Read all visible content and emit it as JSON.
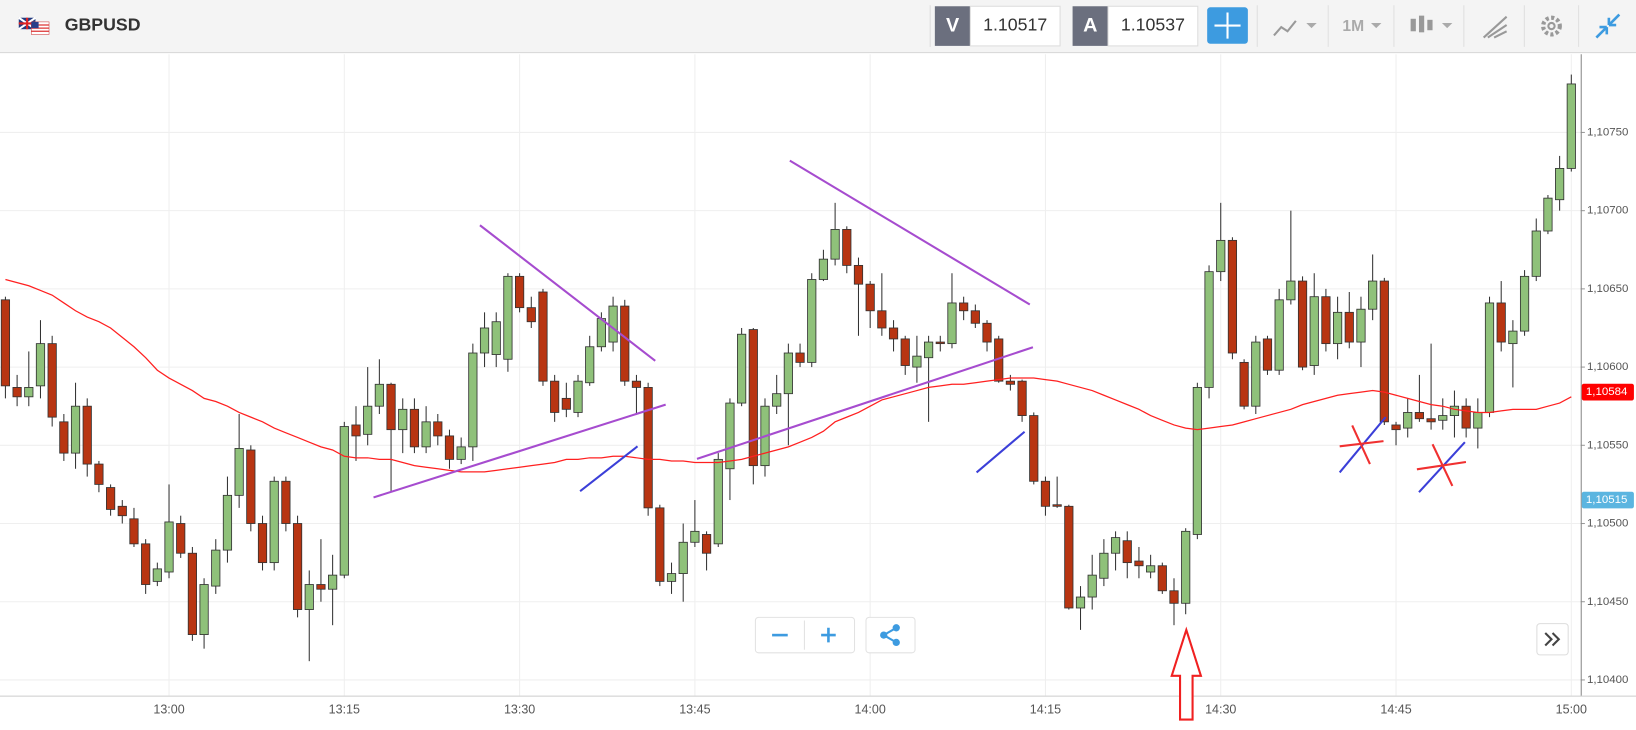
{
  "toolbar": {
    "bid_label": "V",
    "bid": 1.10517,
    "ask_label": "A",
    "ask": 1.10537,
    "timeframe": "1M"
  },
  "chart_data": {
    "type": "candlestick",
    "title": "GBPUSD",
    "categories": [
      null,
      null,
      null,
      null,
      null,
      null,
      null,
      null,
      null,
      null,
      null,
      null,
      null,
      null,
      "13:00",
      null,
      null,
      null,
      null,
      null,
      null,
      null,
      null,
      null,
      null,
      null,
      null,
      null,
      null,
      "13:15",
      null,
      null,
      null,
      null,
      null,
      null,
      null,
      null,
      null,
      null,
      null,
      null,
      null,
      null,
      "13:30",
      null,
      null,
      null,
      null,
      null,
      null,
      null,
      null,
      null,
      null,
      null,
      null,
      null,
      null,
      "13:45",
      null,
      null,
      null,
      null,
      null,
      null,
      null,
      null,
      null,
      null,
      null,
      null,
      null,
      null,
      "14:00",
      null,
      null,
      null,
      null,
      null,
      null,
      null,
      null,
      null,
      null,
      null,
      null,
      null,
      null,
      "14:15",
      null,
      null,
      null,
      null,
      null,
      null,
      null,
      null,
      null,
      null,
      null,
      null,
      null,
      null,
      "14:30",
      null,
      null,
      null,
      null,
      null,
      null,
      null,
      null,
      null,
      null,
      null,
      null,
      null,
      null,
      "14:45",
      null,
      null,
      null,
      null,
      null,
      null,
      null,
      null,
      null,
      null,
      null,
      null,
      null,
      null,
      "15:00"
    ],
    "open": [
      1.10643,
      1.10587,
      1.10581,
      1.10588,
      1.10615,
      1.10565,
      1.10545,
      1.10575,
      1.10538,
      1.10523,
      1.10511,
      1.10503,
      1.10487,
      1.10463,
      1.10469,
      1.105,
      1.10481,
      1.10429,
      1.1046,
      1.10483,
      1.10518,
      1.10547,
      1.105,
      1.10475,
      1.10527,
      1.105,
      1.10445,
      1.10461,
      1.10458,
      1.10467,
      1.10563,
      1.10557,
      1.10575,
      1.10589,
      1.1056,
      1.10573,
      1.10549,
      1.10565,
      1.10556,
      1.10541,
      1.10549,
      1.10609,
      1.10608,
      1.10605,
      1.10658,
      1.10638,
      1.10648,
      1.10591,
      1.1058,
      1.10571,
      1.1059,
      1.10613,
      1.10616,
      1.10639,
      1.10591,
      1.10587,
      1.1051,
      1.10463,
      1.10468,
      1.10488,
      1.10493,
      1.10487,
      1.10535,
      1.10577,
      1.10624,
      1.10537,
      1.10575,
      1.10583,
      1.10609,
      1.10603,
      1.10656,
      1.10669,
      1.10688,
      1.10665,
      1.10653,
      1.10636,
      1.10625,
      1.10618,
      1.106,
      1.10606,
      1.10616,
      1.10615,
      1.10641,
      1.10636,
      1.10628,
      1.10618,
      1.10591,
      1.10591,
      1.10569,
      1.10527,
      1.10512,
      1.10511,
      1.10446,
      1.10453,
      1.10465,
      1.10481,
      1.10489,
      1.10476,
      1.10469,
      1.10473,
      1.10457,
      1.10449,
      1.10493,
      1.10587,
      1.10661,
      1.10681,
      1.10603,
      1.10575,
      1.10618,
      1.10598,
      1.10643,
      1.10655,
      1.10601,
      1.10645,
      1.10615,
      1.10635,
      1.10616,
      1.10637,
      1.10655,
      1.10563,
      1.10561,
      1.10571,
      1.10567,
      1.10566,
      1.10569,
      1.10575,
      1.10561,
      1.10571,
      1.10641,
      1.10615,
      1.10623,
      1.10658,
      1.10687,
      1.10707,
      1.10727
    ],
    "high": [
      1.10645,
      1.10595,
      1.1061,
      1.1063,
      1.1062,
      1.1057,
      1.1059,
      1.1058,
      1.1054,
      1.10525,
      1.10515,
      1.1051,
      1.1049,
      1.10475,
      1.10525,
      1.10505,
      1.10485,
      1.10465,
      1.1049,
      1.1053,
      1.1057,
      1.1055,
      1.10505,
      1.1053,
      1.1053,
      1.10505,
      1.1047,
      1.1049,
      1.1048,
      1.10565,
      1.10575,
      1.106,
      1.10605,
      1.1059,
      1.1058,
      1.1058,
      1.10575,
      1.1057,
      1.1056,
      1.10555,
      1.10615,
      1.10635,
      1.10635,
      1.1066,
      1.1066,
      1.10645,
      1.1065,
      1.10595,
      1.1059,
      1.10595,
      1.1062,
      1.10635,
      1.10645,
      1.10643,
      1.10595,
      1.1059,
      1.10512,
      1.10475,
      1.105,
      1.10515,
      1.10495,
      1.10545,
      1.1058,
      1.10625,
      1.10625,
      1.1058,
      1.10595,
      1.10615,
      1.10615,
      1.1066,
      1.10675,
      1.10705,
      1.1069,
      1.1067,
      1.10655,
      1.1066,
      1.1063,
      1.1062,
      1.1062,
      1.1062,
      1.1062,
      1.1066,
      1.10645,
      1.1064,
      1.1063,
      1.1062,
      1.10595,
      1.10592,
      1.10571,
      1.1053,
      1.1053,
      1.10512,
      1.1046,
      1.1048,
      1.1049,
      1.10495,
      1.10495,
      1.10485,
      1.1048,
      1.10475,
      1.10465,
      1.10497,
      1.1059,
      1.10665,
      1.10705,
      1.10683,
      1.10605,
      1.1062,
      1.1062,
      1.1065,
      1.107,
      1.10658,
      1.1066,
      1.1065,
      1.10645,
      1.10648,
      1.10645,
      1.10672,
      1.10657,
      1.10565,
      1.1058,
      1.10595,
      1.10615,
      1.1058,
      1.10585,
      1.1058,
      1.1058,
      1.10645,
      1.10655,
      1.1063,
      1.10662,
      1.10695,
      1.1071,
      1.10735,
      1.10787
    ],
    "low": [
      1.1058,
      1.10575,
      1.10575,
      1.1058,
      1.10562,
      1.1054,
      1.10535,
      1.1053,
      1.1052,
      1.10505,
      1.105,
      1.10485,
      1.10455,
      1.1046,
      1.10465,
      1.10478,
      1.10425,
      1.1042,
      1.10455,
      1.10475,
      1.1051,
      1.10495,
      1.1047,
      1.1047,
      1.10495,
      1.1044,
      1.10412,
      1.1045,
      1.10435,
      1.10465,
      1.1054,
      1.1055,
      1.1057,
      1.1052,
      1.10545,
      1.10545,
      1.10545,
      1.1055,
      1.10535,
      1.10538,
      1.1054,
      1.106,
      1.106,
      1.10597,
      1.10635,
      1.10625,
      1.10588,
      1.10565,
      1.10568,
      1.10568,
      1.10588,
      1.1061,
      1.1061,
      1.10588,
      1.1057,
      1.10505,
      1.1046,
      1.10455,
      1.1045,
      1.10485,
      1.1047,
      1.10485,
      1.10515,
      1.10575,
      1.10525,
      1.1053,
      1.1057,
      1.1055,
      1.106,
      1.106,
      1.10655,
      1.10665,
      1.1066,
      1.1062,
      1.10625,
      1.1062,
      1.1061,
      1.10595,
      1.1059,
      1.10565,
      1.1061,
      1.10612,
      1.1063,
      1.10625,
      1.1061,
      1.1059,
      1.10585,
      1.10565,
      1.10525,
      1.10505,
      1.1051,
      1.10445,
      1.10432,
      1.10445,
      1.1046,
      1.1047,
      1.10465,
      1.10465,
      1.10465,
      1.10455,
      1.10435,
      1.10442,
      1.1049,
      1.1058,
      1.10655,
      1.10605,
      1.10573,
      1.1057,
      1.10595,
      1.10595,
      1.1064,
      1.10598,
      1.10595,
      1.1061,
      1.10605,
      1.10612,
      1.106,
      1.1063,
      1.10563,
      1.1055,
      1.10555,
      1.10565,
      1.1056,
      1.1056,
      1.10555,
      1.10555,
      1.10548,
      1.10568,
      1.1061,
      1.10587,
      1.1062,
      1.10655,
      1.10685,
      1.107,
      1.10725
    ],
    "close": [
      1.10588,
      1.10581,
      1.10587,
      1.10615,
      1.10568,
      1.10545,
      1.10575,
      1.10538,
      1.10525,
      1.10509,
      1.10505,
      1.10487,
      1.10461,
      1.10471,
      1.10501,
      1.10481,
      1.10429,
      1.10461,
      1.10483,
      1.10518,
      1.10548,
      1.105,
      1.10475,
      1.10527,
      1.105,
      1.10445,
      1.10461,
      1.10458,
      1.10467,
      1.10562,
      1.10556,
      1.10575,
      1.10589,
      1.1056,
      1.10573,
      1.10549,
      1.10565,
      1.10556,
      1.10541,
      1.10549,
      1.10609,
      1.10625,
      1.10629,
      1.10658,
      1.10638,
      1.10629,
      1.10591,
      1.10571,
      1.10573,
      1.10591,
      1.10613,
      1.10631,
      1.10639,
      1.10591,
      1.10587,
      1.1051,
      1.10463,
      1.10468,
      1.10488,
      1.10495,
      1.10481,
      1.10541,
      1.10577,
      1.10621,
      1.10537,
      1.10575,
      1.10583,
      1.10609,
      1.10603,
      1.10656,
      1.10669,
      1.10688,
      1.10665,
      1.10653,
      1.10636,
      1.10625,
      1.10618,
      1.10601,
      1.10607,
      1.10616,
      1.10615,
      1.10641,
      1.10636,
      1.10628,
      1.10616,
      1.10591,
      1.10589,
      1.10569,
      1.10527,
      1.10511,
      1.10511,
      1.10446,
      1.10453,
      1.10467,
      1.10481,
      1.10491,
      1.10475,
      1.10473,
      1.10473,
      1.10457,
      1.10449,
      1.10495,
      1.10587,
      1.10661,
      1.10681,
      1.10609,
      1.10575,
      1.10616,
      1.10598,
      1.10643,
      1.10655,
      1.106,
      1.10645,
      1.10615,
      1.10635,
      1.10616,
      1.10637,
      1.10655,
      1.10565,
      1.1056,
      1.10571,
      1.10567,
      1.10565,
      1.10569,
      1.10575,
      1.10561,
      1.10571,
      1.10641,
      1.10616,
      1.10623,
      1.10658,
      1.10687,
      1.10708,
      1.10727,
      1.10781
    ],
    "up_color": "#8fc17a",
    "down_color": "#b83512",
    "moving_average": {
      "color": "#ff2020",
      "values": [
        1.10656,
        1.10654,
        1.10652,
        1.10649,
        1.10646,
        1.10641,
        1.10636,
        1.10632,
        1.10629,
        1.10625,
        1.10619,
        1.10613,
        1.10606,
        1.10598,
        1.10593,
        1.10589,
        1.10585,
        1.1058,
        1.10578,
        1.10575,
        1.10571,
        1.10568,
        1.10565,
        1.10561,
        1.10558,
        1.10555,
        1.10552,
        1.10549,
        1.10547,
        1.10543,
        1.10542,
        1.10542,
        1.10541,
        1.10541,
        1.10539,
        1.10537,
        1.10536,
        1.10535,
        1.10534,
        1.10533,
        1.10533,
        1.10533,
        1.10534,
        1.10535,
        1.10536,
        1.10537,
        1.10538,
        1.10539,
        1.10541,
        1.10541,
        1.10542,
        1.10542,
        1.10543,
        1.10543,
        1.10542,
        1.10541,
        1.10541,
        1.1054,
        1.1054,
        1.10539,
        1.10539,
        1.10539,
        1.1054,
        1.10541,
        1.10543,
        1.10545,
        1.10547,
        1.10549,
        1.10552,
        1.10555,
        1.10559,
        1.10565,
        1.10568,
        1.10571,
        1.10575,
        1.10579,
        1.10581,
        1.10583,
        1.10585,
        1.10587,
        1.10588,
        1.10589,
        1.10589,
        1.1059,
        1.10591,
        1.10592,
        1.10593,
        1.10593,
        1.10593,
        1.10592,
        1.10591,
        1.10589,
        1.10587,
        1.10585,
        1.10582,
        1.10579,
        1.10576,
        1.10573,
        1.10569,
        1.10566,
        1.10563,
        1.10561,
        1.1056,
        1.10561,
        1.10562,
        1.10563,
        1.10565,
        1.10567,
        1.10569,
        1.10571,
        1.10573,
        1.10576,
        1.10578,
        1.1058,
        1.10582,
        1.10583,
        1.10584,
        1.10585,
        1.10584,
        1.10582,
        1.1058,
        1.10578,
        1.10576,
        1.10575,
        1.10573,
        1.10572,
        1.10571,
        1.10571,
        1.10572,
        1.10573,
        1.10573,
        1.10573,
        1.10575,
        1.10577,
        1.10581
      ]
    },
    "ylim": [
      1.1039,
      1.108
    ],
    "yticks": [
      {
        "value": 1.104,
        "label": "1,10400"
      },
      {
        "value": 1.1045,
        "label": "1,10450"
      },
      {
        "value": 1.105,
        "label": "1,10500"
      },
      {
        "value": 1.1055,
        "label": "1,10550"
      },
      {
        "value": 1.106,
        "label": "1,10600"
      },
      {
        "value": 1.1065,
        "label": "1,10650"
      },
      {
        "value": 1.107,
        "label": "1,10700"
      },
      {
        "value": 1.1075,
        "label": "1,10750"
      }
    ],
    "grid": true,
    "price_tags": [
      {
        "value": 1.10584,
        "label": "1,10584",
        "color": "#ff0000"
      },
      {
        "value": 1.10515,
        "label": "1,10515",
        "color": "#5bb5e0"
      }
    ]
  }
}
